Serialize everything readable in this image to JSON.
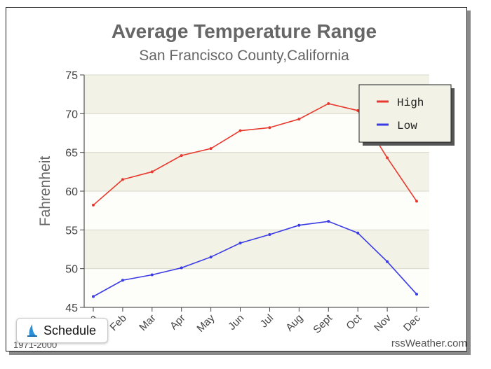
{
  "chart_data": {
    "type": "line",
    "title": "Average Temperature Range",
    "subtitle": "San Francisco County,California",
    "xlabel": "",
    "ylabel": "Fahrenheit",
    "ylim": [
      45,
      75
    ],
    "yticks": [
      45,
      50,
      55,
      60,
      65,
      70,
      75
    ],
    "categories": [
      "Jan",
      "Feb",
      "Mar",
      "Apr",
      "May",
      "Jun",
      "Jul",
      "Aug",
      "Sept",
      "Oct",
      "Nov",
      "Dec"
    ],
    "series": [
      {
        "name": "High",
        "color": "#e8392e",
        "values": [
          58.2,
          61.5,
          62.5,
          64.6,
          65.5,
          67.8,
          68.2,
          69.3,
          71.3,
          70.4,
          64.3,
          58.7
        ]
      },
      {
        "name": "Low",
        "color": "#3a3ae6",
        "values": [
          46.4,
          48.5,
          49.2,
          50.1,
          51.5,
          53.3,
          54.4,
          55.6,
          56.1,
          54.6,
          50.9,
          46.7
        ]
      }
    ],
    "legend": "top-right",
    "grid": true,
    "band_colors": [
      "#f3f2e6",
      "#fdfdf9"
    ]
  },
  "schedule_button": {
    "label": "Schedule",
    "icon": "sail-icon"
  },
  "footer": {
    "credit": "rssWeather.com",
    "years": "1971-2000"
  }
}
